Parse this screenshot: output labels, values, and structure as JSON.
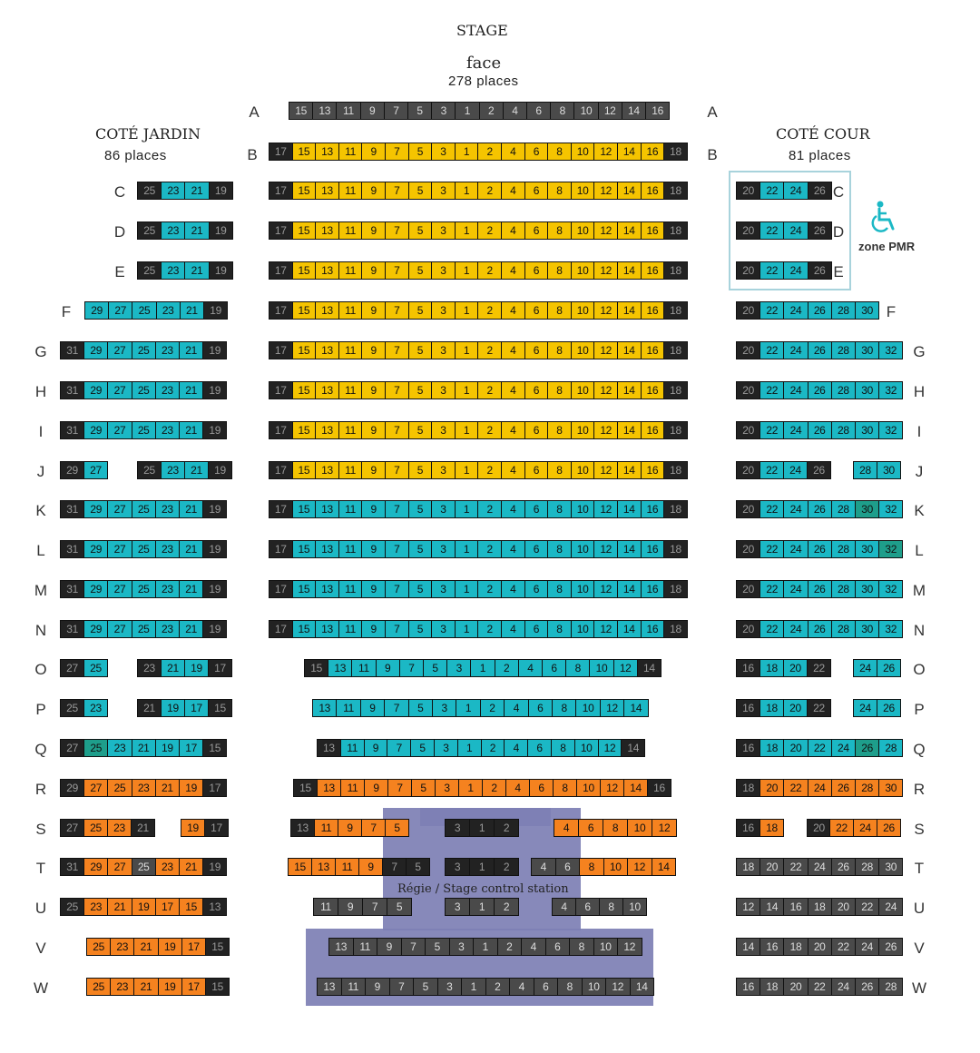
{
  "header": {
    "stage": "STAGE",
    "face": "face",
    "face_places": "278 places",
    "jardin": "COTÉ JARDIN",
    "jardin_places": "86 places",
    "cour": "COTÉ COUR",
    "cour_places": "81 places"
  },
  "pmr": {
    "label": "zone PMR",
    "icon": "wheelchair-icon",
    "color": "#1bb8c5"
  },
  "regie": {
    "label": "Régie / Stage control station",
    "color": "#7d7fb4"
  },
  "colors": {
    "yellow": "#f5c400",
    "cyan": "#1bb8c5",
    "green": "#1e9e8b",
    "orange": "#f5821f",
    "dark": "#4a4a4a",
    "black": "#1a1a1a"
  },
  "rows": [
    "A",
    "B",
    "C",
    "D",
    "E",
    "F",
    "G",
    "H",
    "I",
    "J",
    "K",
    "L",
    "M",
    "N",
    "O",
    "P",
    "Q",
    "R",
    "S",
    "T",
    "U",
    "V",
    "W"
  ],
  "face_numbers": [
    "15",
    "13",
    "11",
    "9",
    "7",
    "5",
    "3",
    "1",
    "2",
    "4",
    "6",
    "8",
    "10",
    "12",
    "14",
    "16"
  ],
  "face_b": [
    "17",
    "15",
    "13",
    "11",
    "9",
    "7",
    "5",
    "3",
    "1",
    "2",
    "4",
    "6",
    "8",
    "10",
    "12",
    "14",
    "16",
    "18"
  ],
  "face_o": [
    "15",
    "13",
    "11",
    "9",
    "7",
    "5",
    "3",
    "1",
    "2",
    "4",
    "6",
    "8",
    "10",
    "12",
    "14"
  ],
  "face_p": [
    "13",
    "11",
    "9",
    "7",
    "5",
    "3",
    "1",
    "2",
    "4",
    "6",
    "8",
    "10",
    "12",
    "14"
  ],
  "face_q": [
    "13",
    "11",
    "9",
    "7",
    "5",
    "3",
    "1",
    "2",
    "4",
    "6",
    "8",
    "10",
    "12",
    "14"
  ],
  "face_r": [
    "15",
    "13",
    "11",
    "9",
    "7",
    "5",
    "3",
    "1",
    "2",
    "4",
    "6",
    "8",
    "10",
    "12",
    "14",
    "16"
  ],
  "face_s_left": [
    "13",
    "11",
    "9",
    "7",
    "5"
  ],
  "face_s_mid": [
    "3",
    "1",
    "2"
  ],
  "face_s_right": [
    "4",
    "6",
    "8",
    "10",
    "12"
  ],
  "face_t_left": [
    "15",
    "13",
    "11",
    "9",
    "7",
    "5"
  ],
  "face_t_mid": [
    "3",
    "1",
    "2"
  ],
  "face_t_right": [
    "4",
    "6",
    "8",
    "10",
    "12",
    "14"
  ],
  "face_u_left": [
    "11",
    "9",
    "7",
    "5"
  ],
  "face_u_mid": [
    "3",
    "1",
    "2"
  ],
  "face_u_right": [
    "4",
    "6",
    "8",
    "10"
  ],
  "face_v": [
    "13",
    "11",
    "9",
    "7",
    "5",
    "3",
    "1",
    "2",
    "4",
    "6",
    "8",
    "10",
    "12"
  ],
  "face_w": [
    "13",
    "11",
    "9",
    "7",
    "5",
    "3",
    "1",
    "2",
    "4",
    "6",
    "8",
    "10",
    "12",
    "14"
  ],
  "jardin_cde": [
    "25",
    "23",
    "21",
    "19"
  ],
  "jardin_f": [
    "29",
    "27",
    "25",
    "23",
    "21",
    "19"
  ],
  "jardin_g": [
    "31",
    "29",
    "27",
    "25",
    "23",
    "21",
    "19"
  ],
  "jardin_j": [
    "29",
    "27",
    "25",
    "23",
    "21",
    "19"
  ],
  "jardin_o": [
    "27",
    "25",
    "23",
    "21",
    "19",
    "17"
  ],
  "jardin_p": [
    "25",
    "23",
    "21",
    "19",
    "17",
    "15"
  ],
  "jardin_q": [
    "27",
    "25",
    "23",
    "21",
    "19",
    "17",
    "15"
  ],
  "jardin_r": [
    "29",
    "27",
    "25",
    "23",
    "21",
    "19",
    "17"
  ],
  "jardin_s": [
    "27",
    "25",
    "23",
    "21",
    "19",
    "17"
  ],
  "jardin_t": [
    "31",
    "29",
    "27",
    "25",
    "23",
    "21",
    "19"
  ],
  "jardin_u": [
    "25",
    "23",
    "21",
    "19",
    "17",
    "15",
    "13"
  ],
  "jardin_vw": [
    "25",
    "23",
    "21",
    "19",
    "17",
    "15"
  ],
  "cour_cde": [
    "20",
    "22",
    "24",
    "26"
  ],
  "cour_f": [
    "20",
    "22",
    "24",
    "26",
    "28",
    "30"
  ],
  "cour_g": [
    "20",
    "22",
    "24",
    "26",
    "28",
    "30",
    "32"
  ],
  "cour_j": [
    "20",
    "22",
    "24",
    "26",
    "28",
    "30"
  ],
  "cour_o": [
    "16",
    "18",
    "20",
    "22",
    "24",
    "26"
  ],
  "cour_q": [
    "16",
    "18",
    "20",
    "22",
    "24",
    "26",
    "28"
  ],
  "cour_r": [
    "18",
    "20",
    "22",
    "24",
    "26",
    "28",
    "30"
  ],
  "cour_s": [
    "16",
    "18",
    "20",
    "22",
    "24",
    "26"
  ],
  "cour_t": [
    "18",
    "20",
    "22",
    "24",
    "26",
    "28",
    "30"
  ],
  "cour_u": [
    "12",
    "14",
    "16",
    "18",
    "20",
    "22",
    "24"
  ],
  "cour_v": [
    "14",
    "16",
    "18",
    "20",
    "22",
    "24",
    "26"
  ],
  "cour_w": [
    "16",
    "18",
    "20",
    "22",
    "24",
    "26",
    "28"
  ]
}
